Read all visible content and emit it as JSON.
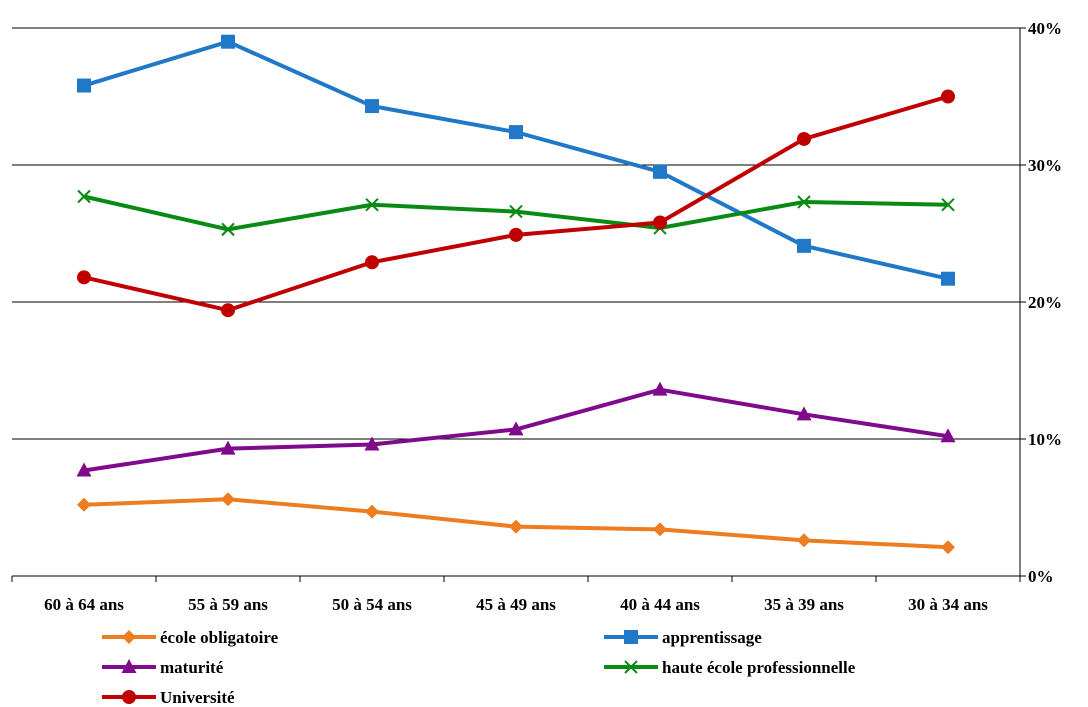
{
  "chart_data": {
    "type": "line",
    "categories": [
      "60 à 64 ans",
      "55 à 59 ans",
      "50 à 54 ans",
      "45 à 49 ans",
      "40 à 44 ans",
      "35 à 39 ans",
      "30 à 34 ans"
    ],
    "ylim": [
      0,
      40
    ],
    "y_ticks": [
      "0%",
      "10%",
      "20%",
      "30%",
      "40%"
    ],
    "y_axis_side": "right",
    "grid": true,
    "legend_position": "bottom",
    "series": [
      {
        "name": "école obligatoire",
        "color": "#ED7D20",
        "marker": "diamond",
        "values": [
          5.2,
          5.6,
          4.7,
          3.6,
          3.4,
          2.6,
          2.1
        ]
      },
      {
        "name": "apprentissage",
        "color": "#1F78C8",
        "marker": "square",
        "values": [
          35.8,
          39.0,
          34.3,
          32.4,
          29.5,
          24.1,
          21.7
        ]
      },
      {
        "name": "maturité",
        "color": "#800A8C",
        "marker": "triangle",
        "values": [
          7.7,
          9.3,
          9.6,
          10.7,
          13.6,
          11.8,
          10.2
        ]
      },
      {
        "name": "haute école professionnelle",
        "color": "#098A14",
        "marker": "x",
        "values": [
          27.7,
          25.3,
          27.1,
          26.6,
          25.4,
          27.3,
          27.1
        ]
      },
      {
        "name": "Université",
        "color": "#C00000",
        "marker": "circle",
        "values": [
          21.8,
          19.4,
          22.9,
          24.9,
          25.8,
          31.9,
          35.0
        ]
      }
    ]
  }
}
